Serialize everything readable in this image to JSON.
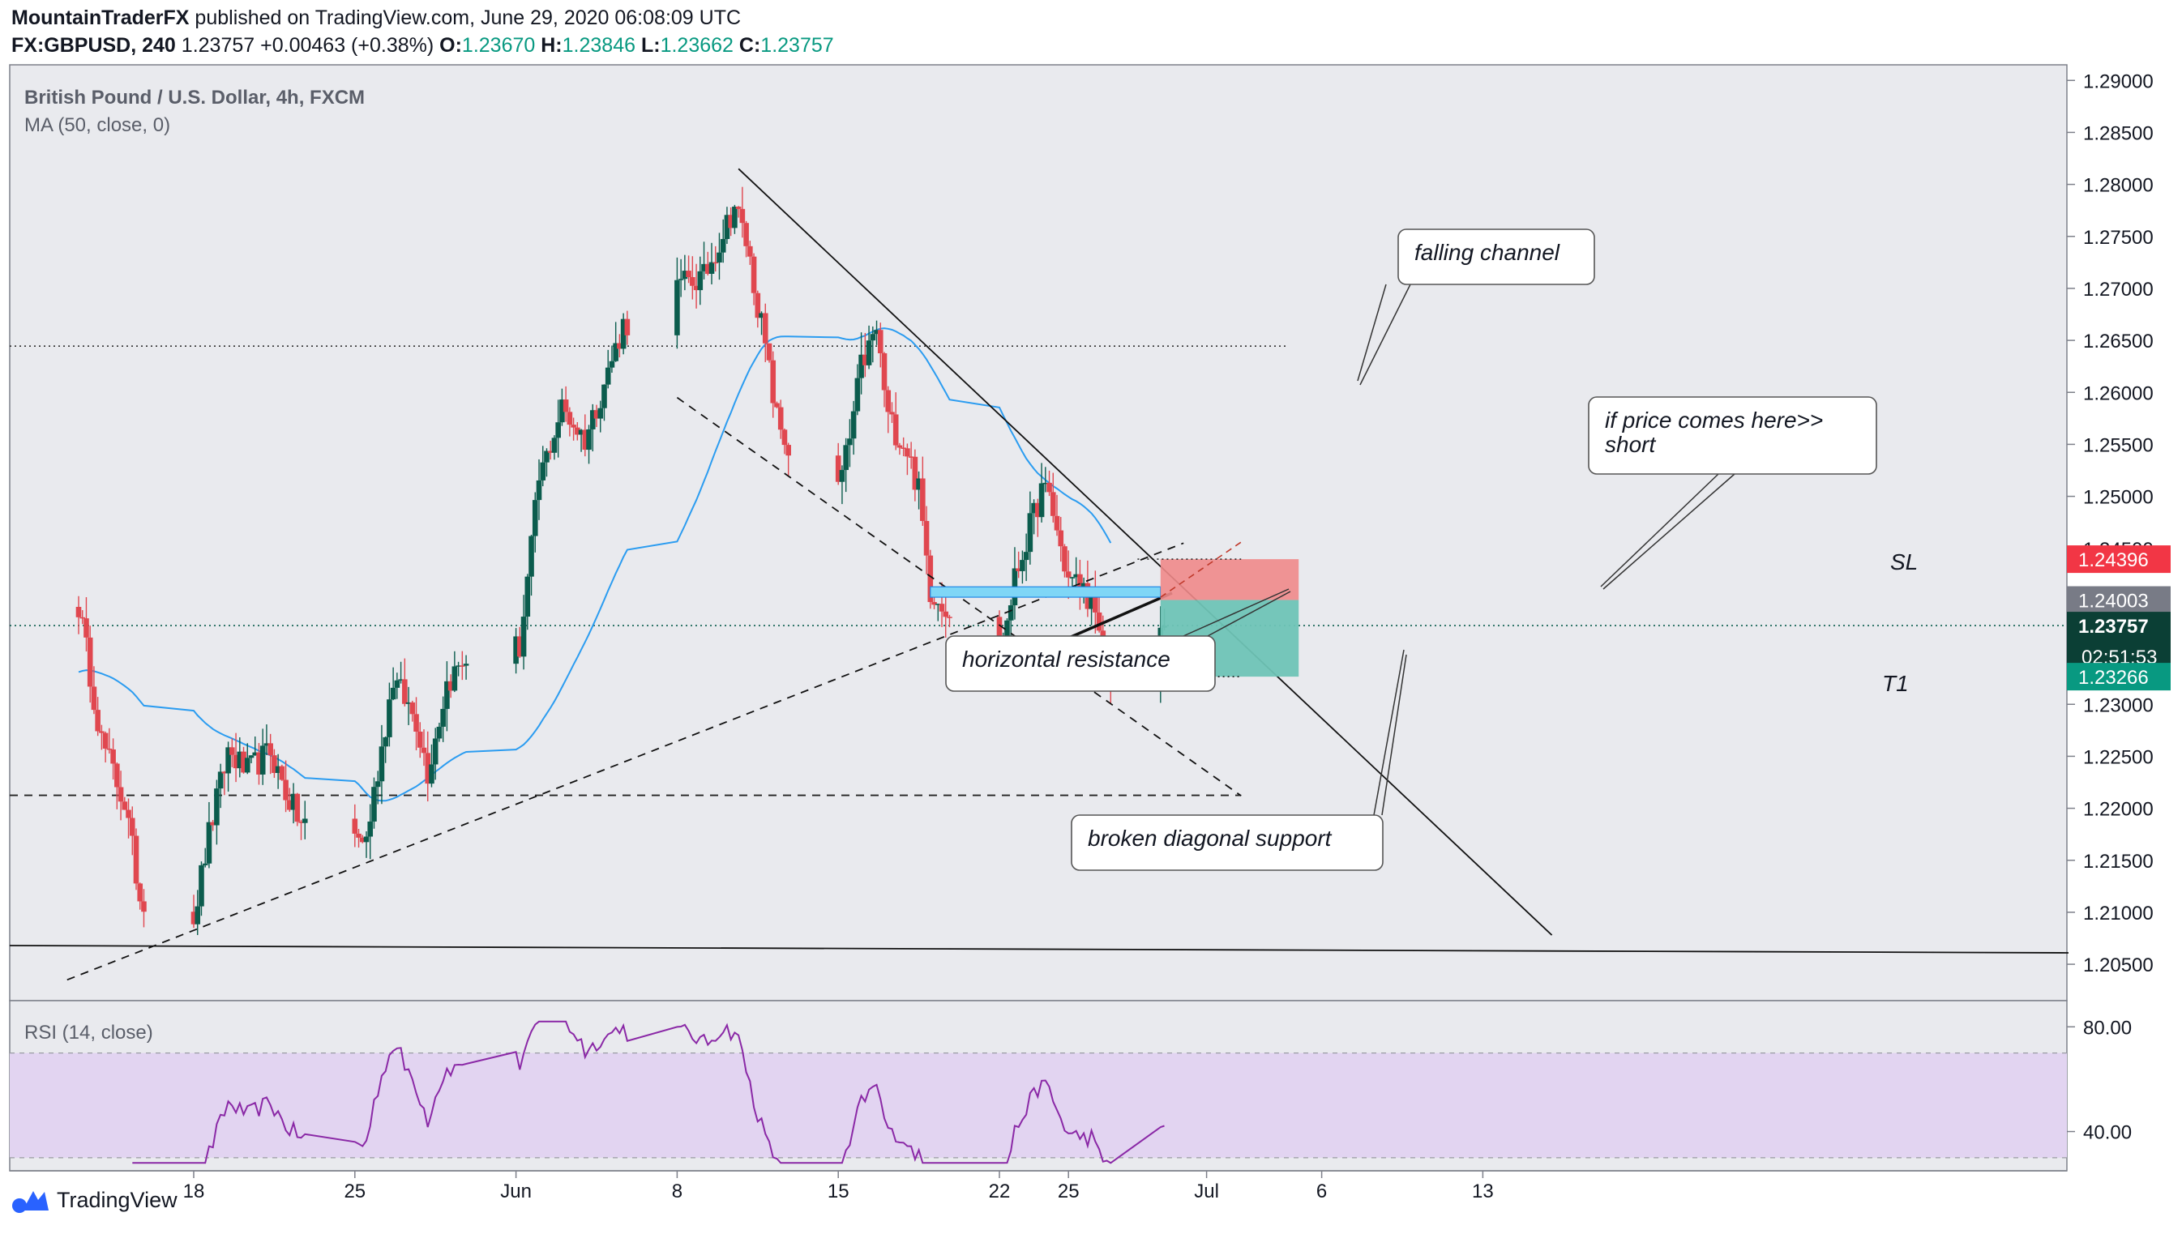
{
  "header": {
    "publisher": "MountainTraderFX",
    "published_text": "published on TradingView.com, June 29, 2020 06:08:09 UTC",
    "symbol": "FX:GBPUSD, 240",
    "last": "1.23757",
    "change": "+0.00463 (+0.38%)",
    "o_label": "O:",
    "o": "1.23670",
    "h_label": "H:",
    "h": "1.23846",
    "l_label": "L:",
    "l": "1.23662",
    "c_label": "C:",
    "c": "1.23757"
  },
  "legend": {
    "title": "British Pound / U.S. Dollar, 4h, FXCM",
    "ma": "MA (50, close, 0)",
    "rsi": "RSI (14, close)"
  },
  "annotations": {
    "falling_channel": "falling channel",
    "short_note_line1": "if price comes here>>",
    "short_note_line2": "short",
    "horizontal_resistance": "horizontal resistance",
    "broken_support": "broken diagonal support",
    "sl": "SL",
    "t1": "T1"
  },
  "price_tags": {
    "sl": "1.24396",
    "entry": "1.24003",
    "last": "1.23757",
    "countdown": "02:51:53",
    "target": "1.23266"
  },
  "footer": {
    "brand": "TradingView"
  },
  "colors": {
    "up": "#0b5c4d",
    "down": "#e0474f",
    "ma": "#2b9cf0",
    "rsi": "#8a28a6",
    "rsi_band": "#e2d4f1",
    "sl_zone": "#f08a8a",
    "tp_zone": "#6fc4b6",
    "resistance_zone": "#7fd6f6"
  },
  "chart_data": {
    "type": "candlestick",
    "title": "British Pound / U.S. Dollar, 4h, FXCM",
    "x_ticks": [
      "18",
      "25",
      "Jun",
      "8",
      "15",
      "22",
      "25",
      "Jul",
      "6",
      "13"
    ],
    "y_ticks": [
      "1.29000",
      "1.28500",
      "1.28000",
      "1.27500",
      "1.27000",
      "1.26500",
      "1.26000",
      "1.25500",
      "1.25000",
      "1.24500",
      "1.24000",
      "1.23500",
      "1.23000",
      "1.22500",
      "1.22000",
      "1.21500",
      "1.21000",
      "1.20500"
    ],
    "ylim": [
      1.2015,
      1.2915
    ],
    "rsi_ticks": [
      "80.00",
      "40.00"
    ],
    "rsi_ylim": [
      25,
      90
    ],
    "levels": {
      "sl": 1.24396,
      "entry": 1.24003,
      "target": 1.23266,
      "last": 1.23757
    },
    "anchors": [
      [
        "2020-05-13 00:00",
        1.2395
      ],
      [
        "2020-05-14 00:00",
        1.2265
      ],
      [
        "2020-05-15 00:00",
        1.2205
      ],
      [
        "2020-05-15 16:00",
        1.2115
      ],
      [
        "2020-05-18 00:00",
        1.2095
      ],
      [
        "2020-05-18 16:00",
        1.2175
      ],
      [
        "2020-05-19 12:00",
        1.2255
      ],
      [
        "2020-05-20 08:00",
        1.2235
      ],
      [
        "2020-05-21 08:00",
        1.2255
      ],
      [
        "2020-05-22 00:00",
        1.2215
      ],
      [
        "2020-05-22 16:00",
        1.2185
      ],
      [
        "2020-05-25 12:00",
        1.217
      ],
      [
        "2020-05-26 16:00",
        1.2325
      ],
      [
        "2020-05-27 16:00",
        1.2285
      ],
      [
        "2020-05-28 04:00",
        1.2235
      ],
      [
        "2020-05-29 00:00",
        1.232
      ],
      [
        "2020-05-29 20:00",
        1.2345
      ],
      [
        "2020-06-01 04:00",
        1.2355
      ],
      [
        "2020-06-02 00:00",
        1.2515
      ],
      [
        "2020-06-03 00:00",
        1.2585
      ],
      [
        "2020-06-04 00:00",
        1.2555
      ],
      [
        "2020-06-05 00:00",
        1.262
      ],
      [
        "2020-06-05 16:00",
        1.2665
      ],
      [
        "2020-06-08 08:00",
        1.2705
      ],
      [
        "2020-06-09 04:00",
        1.271
      ],
      [
        "2020-06-09 20:00",
        1.2745
      ],
      [
        "2020-06-10 12:00",
        1.278
      ],
      [
        "2020-06-11 00:00",
        1.2745
      ],
      [
        "2020-06-11 16:00",
        1.2665
      ],
      [
        "2020-06-12 08:00",
        1.2575
      ],
      [
        "2020-06-12 20:00",
        1.2545
      ],
      [
        "2020-06-15 00:00",
        1.2505
      ],
      [
        "2020-06-15 12:00",
        1.2555
      ],
      [
        "2020-06-16 00:00",
        1.2625
      ],
      [
        "2020-06-16 16:00",
        1.266
      ],
      [
        "2020-06-17 04:00",
        1.2575
      ],
      [
        "2020-06-18 00:00",
        1.2545
      ],
      [
        "2020-06-18 12:00",
        1.2505
      ],
      [
        "2020-06-19 00:00",
        1.241
      ],
      [
        "2020-06-19 16:00",
        1.2395
      ],
      [
        "2020-06-22 00:00",
        1.234
      ],
      [
        "2020-06-22 16:00",
        1.242
      ],
      [
        "2020-06-23 08:00",
        1.247
      ],
      [
        "2020-06-23 20:00",
        1.2505
      ],
      [
        "2020-06-24 04:00",
        1.25
      ],
      [
        "2020-06-24 16:00",
        1.245
      ],
      [
        "2020-06-25 00:00",
        1.242
      ],
      [
        "2020-06-25 12:00",
        1.2415
      ],
      [
        "2020-06-26 00:00",
        1.24
      ],
      [
        "2020-06-26 12:00",
        1.234
      ],
      [
        "2020-06-26 20:00",
        1.233
      ],
      [
        "2020-06-29 04:00",
        1.2376
      ]
    ]
  }
}
